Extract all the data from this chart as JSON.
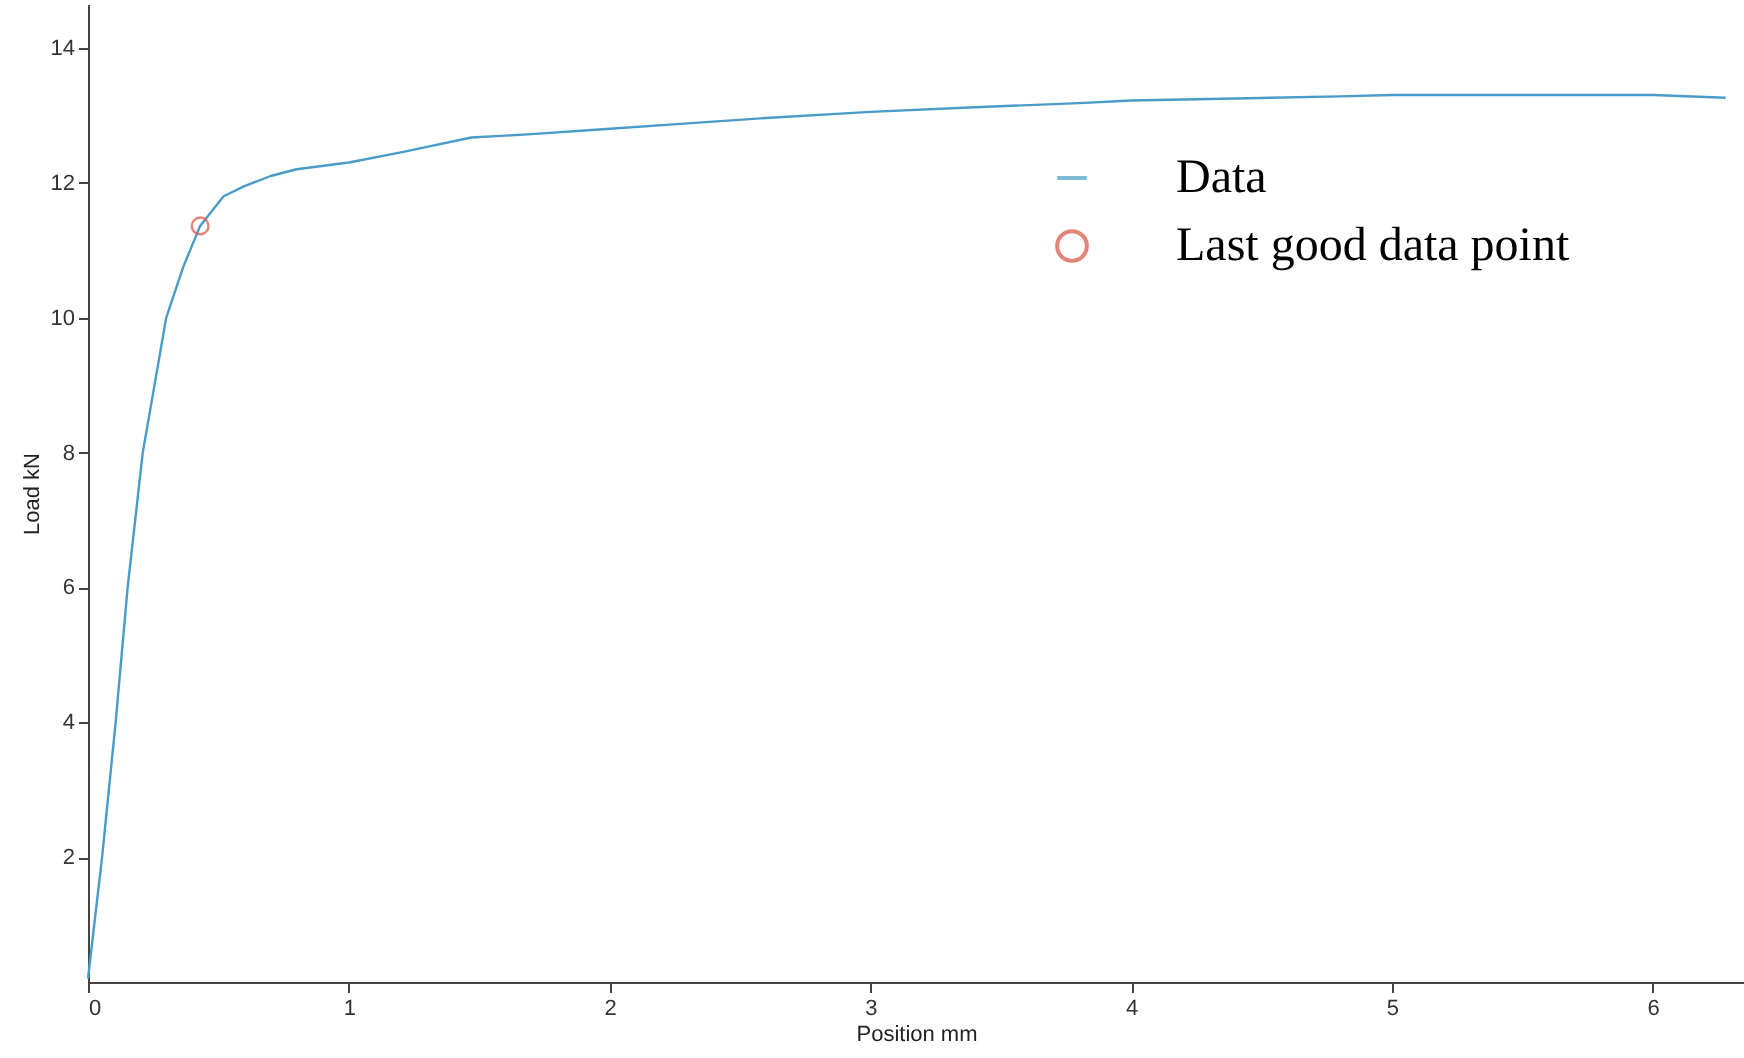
{
  "chart_data": {
    "type": "line",
    "xlabel": "Position mm",
    "ylabel": "Load kN",
    "xlim": [
      0,
      6.35
    ],
    "ylim": [
      0.15,
      14.65
    ],
    "xticks": [
      0,
      1,
      2,
      3,
      4,
      5,
      6
    ],
    "yticks": [
      2,
      4,
      6,
      8,
      10,
      12,
      14
    ],
    "grid": false,
    "legend": "top right",
    "series": [
      {
        "name": "Data",
        "color": "#4a9cc8",
        "marker": "none",
        "x": [
          0,
          0.054,
          0.106,
          0.152,
          0.21,
          0.3,
          0.365,
          0.43,
          0.52,
          0.6,
          0.7,
          0.8,
          1.0,
          1.2,
          1.47,
          1.7,
          1.96,
          2.3,
          2.6,
          3.0,
          3.4,
          3.8,
          4.0,
          4.4,
          4.8,
          5.0,
          5.4,
          5.8,
          6.0,
          6.28
        ],
        "values": [
          0.2,
          2,
          4,
          6,
          8,
          10,
          10.75,
          11.36,
          11.8,
          11.95,
          12.1,
          12.2,
          12.3,
          12.45,
          12.67,
          12.72,
          12.79,
          12.88,
          12.96,
          13.05,
          13.12,
          13.18,
          13.22,
          13.25,
          13.28,
          13.3,
          13.3,
          13.3,
          13.3,
          13.26
        ]
      },
      {
        "name": "Last good data point",
        "type": "scatter",
        "color": "#d95040",
        "marker": "circle",
        "x": [
          0.43
        ],
        "values": [
          11.36
        ]
      }
    ]
  }
}
